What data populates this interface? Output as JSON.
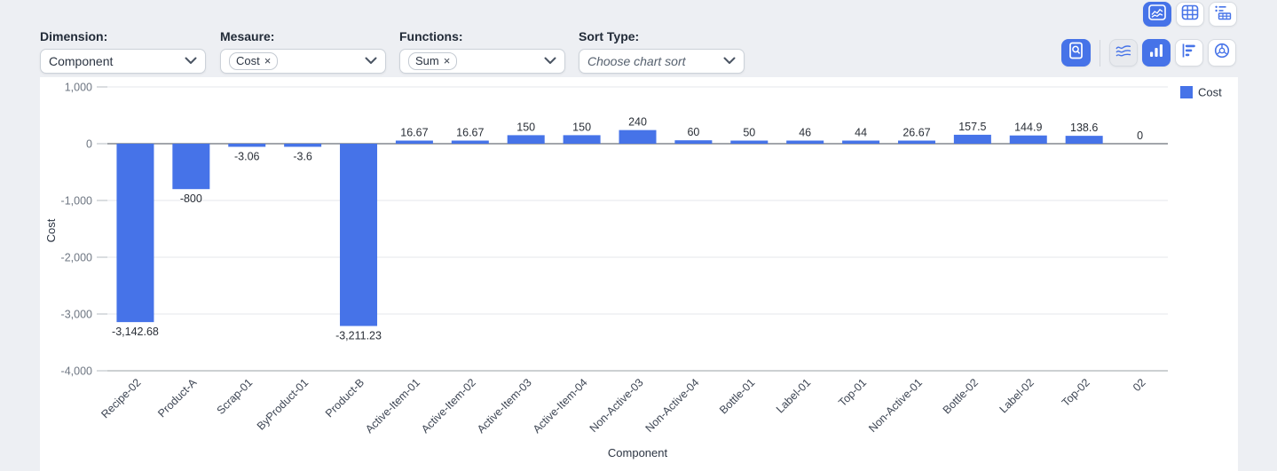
{
  "ui": {
    "remove_icon": "×"
  },
  "colors": {
    "accent": "#4673e8",
    "page_bg": "#edeff3",
    "panel_bg": "#ffffff"
  },
  "controls": [
    {
      "label": "Dimension:",
      "type": "select",
      "value": "Component"
    },
    {
      "label": "Mesaure:",
      "type": "multiselect",
      "tags": [
        "Cost"
      ]
    },
    {
      "label": "Functions:",
      "type": "multiselect",
      "tags": [
        "Sum"
      ]
    },
    {
      "label": "Sort Type:",
      "type": "select",
      "placeholder": "Choose chart sort"
    }
  ],
  "toolbar": {
    "view_buttons": [
      {
        "icon": "area-chart-icon",
        "active": true
      },
      {
        "icon": "data-grid-icon",
        "active": false
      },
      {
        "icon": "pivot-table-icon",
        "active": false
      }
    ],
    "chart_type_buttons": [
      {
        "icon": "report-search-icon",
        "active": true
      },
      {
        "icon": "line-chart-icon",
        "active": false,
        "muted": true
      },
      {
        "icon": "bar-chart-icon",
        "active": true
      },
      {
        "icon": "horizontal-bar-chart-icon",
        "active": false
      },
      {
        "icon": "doughnut-chart-icon",
        "active": false
      }
    ]
  },
  "chart_data": {
    "type": "bar",
    "legend": "Cost",
    "legend_position": "top-right",
    "xlabel": "Component",
    "ylabel": "Cost",
    "ylim": [
      -4000,
      1000
    ],
    "grid": true,
    "categories": [
      "Recipe-02",
      "Product-A",
      "Scrap-01",
      "ByProduct-01",
      "Product-B",
      "Active-Item-01",
      "Active-Item-02",
      "Active-Item-03",
      "Active-Item-04",
      "Non-Active-03",
      "Non-Active-04",
      "Bottle-01",
      "Label-01",
      "Top-01",
      "Non-Active-01",
      "Bottle-02",
      "Label-02",
      "Top-02",
      "02"
    ],
    "values": [
      -3142.68,
      -800,
      -3.06,
      -3.6,
      -3211.23,
      16.67,
      16.67,
      150,
      150,
      240,
      60,
      50,
      46,
      44,
      26.67,
      157.5,
      144.9,
      138.6,
      0
    ],
    "value_labels": [
      "-3,142.68",
      "-800",
      "-3.06",
      "-3.6",
      "-3,211.23",
      "16.67",
      "16.67",
      "150",
      "150",
      "240",
      "60",
      "50",
      "46",
      "44",
      "26.67",
      "157.5",
      "144.9",
      "138.6",
      "0"
    ],
    "yticks": [
      {
        "value": 1000,
        "label": "1,000"
      },
      {
        "value": 0,
        "label": "0"
      },
      {
        "value": -1000,
        "label": "-1,000"
      },
      {
        "value": -2000,
        "label": "-2,000"
      },
      {
        "value": -3000,
        "label": "-3,000"
      },
      {
        "value": -4000,
        "label": "-4,000"
      }
    ],
    "style": {
      "bar_color": "#4673e8",
      "grid_line": "#e4e7eb",
      "zero_line": "#83888f",
      "axis_line": "#9aa0a6",
      "tick_color": "#6e7682",
      "value_color": "#2a2f37",
      "xlabel_color": "#3e4654",
      "title_color": "#2b3442"
    }
  }
}
